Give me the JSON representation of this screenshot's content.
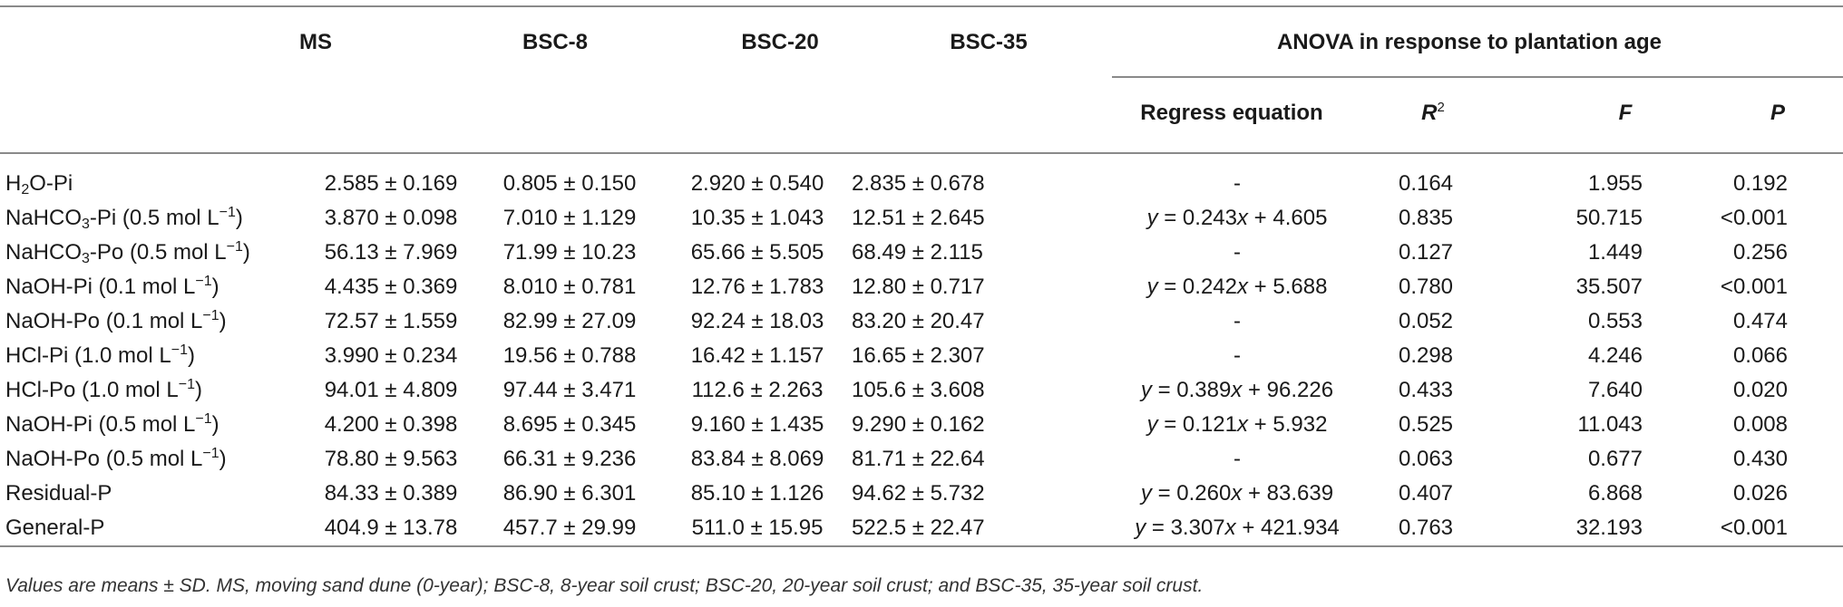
{
  "table": {
    "headers": {
      "ms": "MS",
      "bsc8": "BSC-8",
      "bsc20": "BSC-20",
      "bsc35": "BSC-35",
      "anova_group": "ANOVA in response to plantation age",
      "regress": "Regress equation",
      "r2": "R²",
      "f": "F",
      "p": "P"
    },
    "rows": [
      {
        "label": "H2O-Pi",
        "ms": "2.585 ± 0.169",
        "bsc8": "0.805 ± 0.150",
        "bsc20": "2.920 ± 0.540",
        "bsc35": "2.835 ± 0.678",
        "eq": "-",
        "r2": "0.164",
        "f": "1.955",
        "p": "0.192"
      },
      {
        "label": "NaHCO3-Pi (0.5 mol L−1)",
        "ms": "3.870 ± 0.098",
        "bsc8": "7.010 ± 1.129",
        "bsc20": "10.35 ± 1.043",
        "bsc35": "12.51 ± 2.645",
        "eq": "y = 0.243x + 4.605",
        "r2": "0.835",
        "f": "50.715",
        "p": "<0.001"
      },
      {
        "label": "NaHCO3-Po (0.5 mol L−1)",
        "ms": "56.13 ± 7.969",
        "bsc8": "71.99 ± 10.23",
        "bsc20": "65.66 ± 5.505",
        "bsc35": "68.49 ± 2.115",
        "eq": "-",
        "r2": "0.127",
        "f": "1.449",
        "p": "0.256"
      },
      {
        "label": "NaOH-Pi (0.1 mol L−1)",
        "ms": "4.435 ± 0.369",
        "bsc8": "8.010 ± 0.781",
        "bsc20": "12.76 ± 1.783",
        "bsc35": "12.80 ± 0.717",
        "eq": "y = 0.242x + 5.688",
        "r2": "0.780",
        "f": "35.507",
        "p": "<0.001"
      },
      {
        "label": "NaOH-Po (0.1 mol L−1)",
        "ms": "72.57 ± 1.559",
        "bsc8": "82.99 ± 27.09",
        "bsc20": "92.24 ± 18.03",
        "bsc35": "83.20 ± 20.47",
        "eq": "-",
        "r2": "0.052",
        "f": "0.553",
        "p": "0.474"
      },
      {
        "label": "HCl-Pi (1.0 mol L−1)",
        "ms": "3.990 ± 0.234",
        "bsc8": "19.56 ± 0.788",
        "bsc20": "16.42 ± 1.157",
        "bsc35": "16.65 ± 2.307",
        "eq": "-",
        "r2": "0.298",
        "f": "4.246",
        "p": "0.066"
      },
      {
        "label": "HCl-Po (1.0 mol L−1)",
        "ms": "94.01 ± 4.809",
        "bsc8": "97.44 ± 3.471",
        "bsc20": "112.6 ± 2.263",
        "bsc35": "105.6 ± 3.608",
        "eq": "y = 0.389x + 96.226",
        "r2": "0.433",
        "f": "7.640",
        "p": "0.020"
      },
      {
        "label": "NaOH-Pi (0.5 mol L−1)",
        "ms": "4.200 ± 0.398",
        "bsc8": "8.695 ± 0.345",
        "bsc20": "9.160 ± 1.435",
        "bsc35": "9.290 ± 0.162",
        "eq": "y = 0.121x + 5.932",
        "r2": "0.525",
        "f": "11.043",
        "p": "0.008"
      },
      {
        "label": "NaOH-Po (0.5 mol L−1)",
        "ms": "78.80 ± 9.563",
        "bsc8": "66.31 ± 9.236",
        "bsc20": "83.84 ± 8.069",
        "bsc35": "81.71 ± 22.64",
        "eq": "-",
        "r2": "0.063",
        "f": "0.677",
        "p": "0.430"
      },
      {
        "label": "Residual-P",
        "ms": "84.33 ± 0.389",
        "bsc8": "86.90 ± 6.301",
        "bsc20": "85.10 ± 1.126",
        "bsc35": "94.62 ± 5.732",
        "eq": "y = 0.260x + 83.639",
        "r2": "0.407",
        "f": "6.868",
        "p": "0.026"
      },
      {
        "label": "General-P",
        "ms": "404.9 ± 13.78",
        "bsc8": "457.7 ± 29.99",
        "bsc20": "511.0 ± 15.95",
        "bsc35": "522.5 ± 22.47",
        "eq": "y = 3.307x + 421.934",
        "r2": "0.763",
        "f": "32.193",
        "p": "<0.001"
      }
    ]
  },
  "footnote": "Values are means ± SD. MS, moving sand dune (0-year); BSC-8, 8-year soil crust; BSC-20, 20-year soil crust; and BSC-35, 35-year soil crust."
}
